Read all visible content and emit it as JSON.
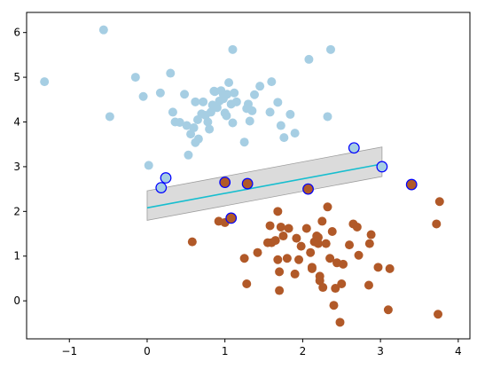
{
  "chart_data": {
    "type": "scatter",
    "title": "",
    "xlabel": "",
    "ylabel": "",
    "xlim": [
      -1.55,
      4.15
    ],
    "ylim": [
      -0.85,
      6.45
    ],
    "x_ticks": [
      -1,
      0,
      1,
      2,
      3,
      4
    ],
    "y_ticks": [
      0,
      1,
      2,
      3,
      4,
      5,
      6
    ],
    "grid": false,
    "legend": "none",
    "colors": {
      "class_a": "#a6cee3",
      "class_b": "#b15928",
      "support_vector_edge": "#0000ff",
      "line": "#17becf",
      "band": "#bdbdbd"
    },
    "series": [
      {
        "color": "#a6cee3",
        "points": [
          [
            -1.32,
            4.9
          ],
          [
            -0.56,
            6.06
          ],
          [
            -0.48,
            4.12
          ],
          [
            -0.15,
            5.0
          ],
          [
            -0.05,
            4.57
          ],
          [
            0.02,
            3.03
          ],
          [
            0.17,
            4.65
          ],
          [
            0.3,
            5.09
          ],
          [
            0.33,
            4.22
          ],
          [
            0.36,
            4.0
          ],
          [
            0.42,
            3.99
          ],
          [
            0.48,
            4.62
          ],
          [
            0.51,
            3.92
          ],
          [
            0.53,
            3.26
          ],
          [
            0.56,
            3.73
          ],
          [
            0.6,
            3.87
          ],
          [
            0.62,
            3.54
          ],
          [
            0.62,
            4.45
          ],
          [
            0.65,
            4.05
          ],
          [
            0.66,
            3.62
          ],
          [
            0.7,
            4.18
          ],
          [
            0.72,
            4.45
          ],
          [
            0.75,
            4.15
          ],
          [
            0.78,
            4.0
          ],
          [
            0.8,
            3.84
          ],
          [
            0.82,
            4.22
          ],
          [
            0.84,
            4.38
          ],
          [
            0.87,
            4.68
          ],
          [
            0.9,
            4.32
          ],
          [
            0.93,
            4.47
          ],
          [
            0.95,
            4.7
          ],
          [
            0.98,
            4.52
          ],
          [
            1.0,
            4.2
          ],
          [
            1.02,
            4.14
          ],
          [
            1.03,
            4.62
          ],
          [
            1.05,
            4.88
          ],
          [
            1.08,
            4.4
          ],
          [
            1.1,
            3.98
          ],
          [
            1.12,
            4.65
          ],
          [
            1.1,
            5.62
          ],
          [
            1.15,
            4.45
          ],
          [
            1.25,
            3.55
          ],
          [
            1.28,
            4.3
          ],
          [
            1.3,
            4.4
          ],
          [
            1.32,
            4.02
          ],
          [
            1.35,
            4.25
          ],
          [
            1.38,
            4.61
          ],
          [
            1.45,
            4.8
          ],
          [
            1.6,
            4.9
          ],
          [
            1.58,
            4.22
          ],
          [
            1.68,
            4.44
          ],
          [
            1.72,
            3.92
          ],
          [
            1.76,
            3.65
          ],
          [
            1.84,
            4.17
          ],
          [
            1.9,
            3.75
          ],
          [
            2.08,
            5.4
          ],
          [
            2.32,
            4.12
          ],
          [
            2.36,
            5.62
          ],
          [
            0.86,
            4.69
          ],
          [
            0.98,
            4.61
          ]
        ]
      },
      {
        "color": "#b15928",
        "points": [
          [
            0.58,
            1.32
          ],
          [
            0.92,
            1.78
          ],
          [
            1.0,
            1.75
          ],
          [
            1.25,
            0.95
          ],
          [
            1.28,
            0.38
          ],
          [
            1.42,
            1.08
          ],
          [
            1.55,
            1.3
          ],
          [
            1.58,
            1.68
          ],
          [
            1.6,
            1.3
          ],
          [
            1.65,
            1.35
          ],
          [
            1.68,
            2.0
          ],
          [
            1.68,
            0.92
          ],
          [
            1.7,
            0.65
          ],
          [
            1.7,
            0.23
          ],
          [
            1.72,
            1.65
          ],
          [
            1.75,
            1.45
          ],
          [
            1.8,
            0.95
          ],
          [
            1.82,
            1.62
          ],
          [
            1.9,
            0.6
          ],
          [
            1.92,
            1.4
          ],
          [
            1.95,
            0.92
          ],
          [
            1.98,
            1.22
          ],
          [
            2.05,
            1.62
          ],
          [
            2.1,
            1.08
          ],
          [
            2.12,
            0.75
          ],
          [
            2.15,
            1.32
          ],
          [
            2.18,
            1.45
          ],
          [
            2.2,
            1.28
          ],
          [
            2.22,
            0.55
          ],
          [
            2.22,
            0.45
          ],
          [
            2.25,
            1.78
          ],
          [
            2.26,
            0.3
          ],
          [
            2.3,
            1.28
          ],
          [
            2.32,
            2.1
          ],
          [
            2.35,
            0.95
          ],
          [
            2.38,
            1.55
          ],
          [
            2.4,
            -0.1
          ],
          [
            2.42,
            0.28
          ],
          [
            2.44,
            0.85
          ],
          [
            2.48,
            -0.48
          ],
          [
            2.5,
            0.38
          ],
          [
            2.52,
            0.82
          ],
          [
            2.6,
            1.25
          ],
          [
            2.65,
            1.72
          ],
          [
            2.7,
            1.65
          ],
          [
            2.72,
            1.02
          ],
          [
            2.85,
            0.35
          ],
          [
            2.86,
            1.28
          ],
          [
            2.88,
            1.48
          ],
          [
            2.97,
            0.75
          ],
          [
            3.1,
            -0.2
          ],
          [
            3.12,
            0.72
          ],
          [
            3.72,
            1.72
          ],
          [
            3.76,
            2.22
          ],
          [
            3.74,
            -0.3
          ],
          [
            2.12,
            0.72
          ],
          [
            2.2,
            1.42
          ]
        ]
      },
      {
        "name": "",
        "color": "#a6cee3",
        "edge": "#0000ff",
        "points": [
          [
            0.18,
            2.53
          ],
          [
            0.24,
            2.75
          ],
          [
            2.66,
            3.42
          ],
          [
            3.02,
            3.0
          ]
        ]
      },
      {
        "name": "",
        "color": "#b15928",
        "edge": "#0000ff",
        "points": [
          [
            1.0,
            2.65
          ],
          [
            1.08,
            1.85
          ],
          [
            1.29,
            2.62
          ],
          [
            2.07,
            2.5
          ],
          [
            3.4,
            2.6
          ]
        ]
      }
    ],
    "line": {
      "x": [
        0.0,
        3.02
      ],
      "y": [
        2.08,
        3.06
      ]
    },
    "band": {
      "x": [
        0.0,
        3.02
      ],
      "y_lower": [
        1.8,
        2.78
      ],
      "y_upper": [
        2.46,
        3.44
      ]
    }
  }
}
